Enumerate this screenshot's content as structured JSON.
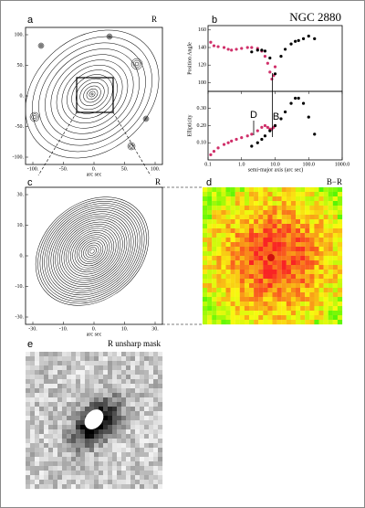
{
  "panels": {
    "a": {
      "label": "a",
      "band": "R",
      "xticks": [
        "-100.",
        "-50.",
        "0.",
        "50.",
        "100."
      ],
      "yticks": [
        "100.",
        "50.",
        "0.",
        "-50.",
        "-100."
      ],
      "xlabel": "arc sec"
    },
    "c": {
      "label": "c",
      "band": "R",
      "xticks": [
        "-30.",
        "-10.",
        "0.",
        "10.",
        "30."
      ],
      "yticks": [
        "30.",
        "10.",
        "0.",
        "-10.",
        "-30."
      ],
      "xlabel": "arc sec"
    },
    "d": {
      "label": "d",
      "band": "B−R"
    },
    "e": {
      "label": "e",
      "band": "R unsharp mask"
    },
    "b": {
      "label": "b",
      "title": "NGC 2880",
      "xlabel": "semi-major axis (arc sec)",
      "annotations": [
        "D",
        "B"
      ]
    }
  },
  "chart_data": [
    {
      "type": "scatter",
      "ylabel": "Position Angle",
      "log_x": true,
      "xlim": [
        0.1,
        1000
      ],
      "ylim": [
        90,
        165
      ],
      "yticks": [
        100,
        120,
        140,
        160
      ],
      "series": [
        {
          "color": "#d0306a",
          "x": [
            0.12,
            0.15,
            0.2,
            0.3,
            0.4,
            0.5,
            0.7,
            1,
            1.5,
            2,
            3,
            4,
            5,
            6,
            7,
            8,
            9,
            10
          ],
          "values": [
            146,
            142,
            141,
            140,
            138,
            137,
            138,
            139,
            140,
            140,
            139,
            136,
            130,
            122,
            112,
            104,
            108,
            118
          ]
        },
        {
          "color": "#000000",
          "x": [
            2,
            3,
            4,
            5,
            7,
            10,
            15,
            20,
            30,
            40,
            50,
            70,
            100,
            150
          ],
          "values": [
            135,
            137,
            137,
            136,
            128,
            110,
            130,
            138,
            144,
            147,
            148,
            150,
            153,
            150
          ]
        }
      ]
    },
    {
      "type": "scatter",
      "ylabel": "Ellipticity",
      "log_x": true,
      "xlim": [
        0.1,
        1000
      ],
      "ylim": [
        0,
        0.4
      ],
      "yticks": [
        {
          "value": 0.1,
          "label": "0.10"
        },
        {
          "value": 0.2,
          "label": "0.20"
        },
        {
          "value": 0.3,
          "label": "0.30"
        }
      ],
      "xticks": [
        {
          "value": 0.1,
          "label": "0.1"
        },
        {
          "value": 1,
          "label": "1.0"
        },
        {
          "value": 10,
          "label": "10.0"
        },
        {
          "value": 100,
          "label": "100.0"
        },
        {
          "value": 1000,
          "label": "1000.0"
        }
      ],
      "series": [
        {
          "color": "#d0306a",
          "x": [
            0.12,
            0.15,
            0.2,
            0.3,
            0.4,
            0.5,
            0.7,
            1,
            1.5,
            2,
            3,
            4,
            5,
            6,
            7,
            8,
            9,
            10
          ],
          "values": [
            0.03,
            0.05,
            0.07,
            0.09,
            0.1,
            0.11,
            0.12,
            0.13,
            0.14,
            0.15,
            0.17,
            0.19,
            0.2,
            0.19,
            0.18,
            0.18,
            0.19,
            0.2
          ]
        },
        {
          "color": "#000000",
          "x": [
            2,
            3,
            4,
            5,
            7,
            10,
            15,
            20,
            30,
            40,
            50,
            70,
            100,
            150
          ],
          "values": [
            0.08,
            0.1,
            0.12,
            0.14,
            0.17,
            0.2,
            0.24,
            0.28,
            0.33,
            0.36,
            0.36,
            0.33,
            0.25,
            0.15
          ]
        }
      ]
    }
  ]
}
